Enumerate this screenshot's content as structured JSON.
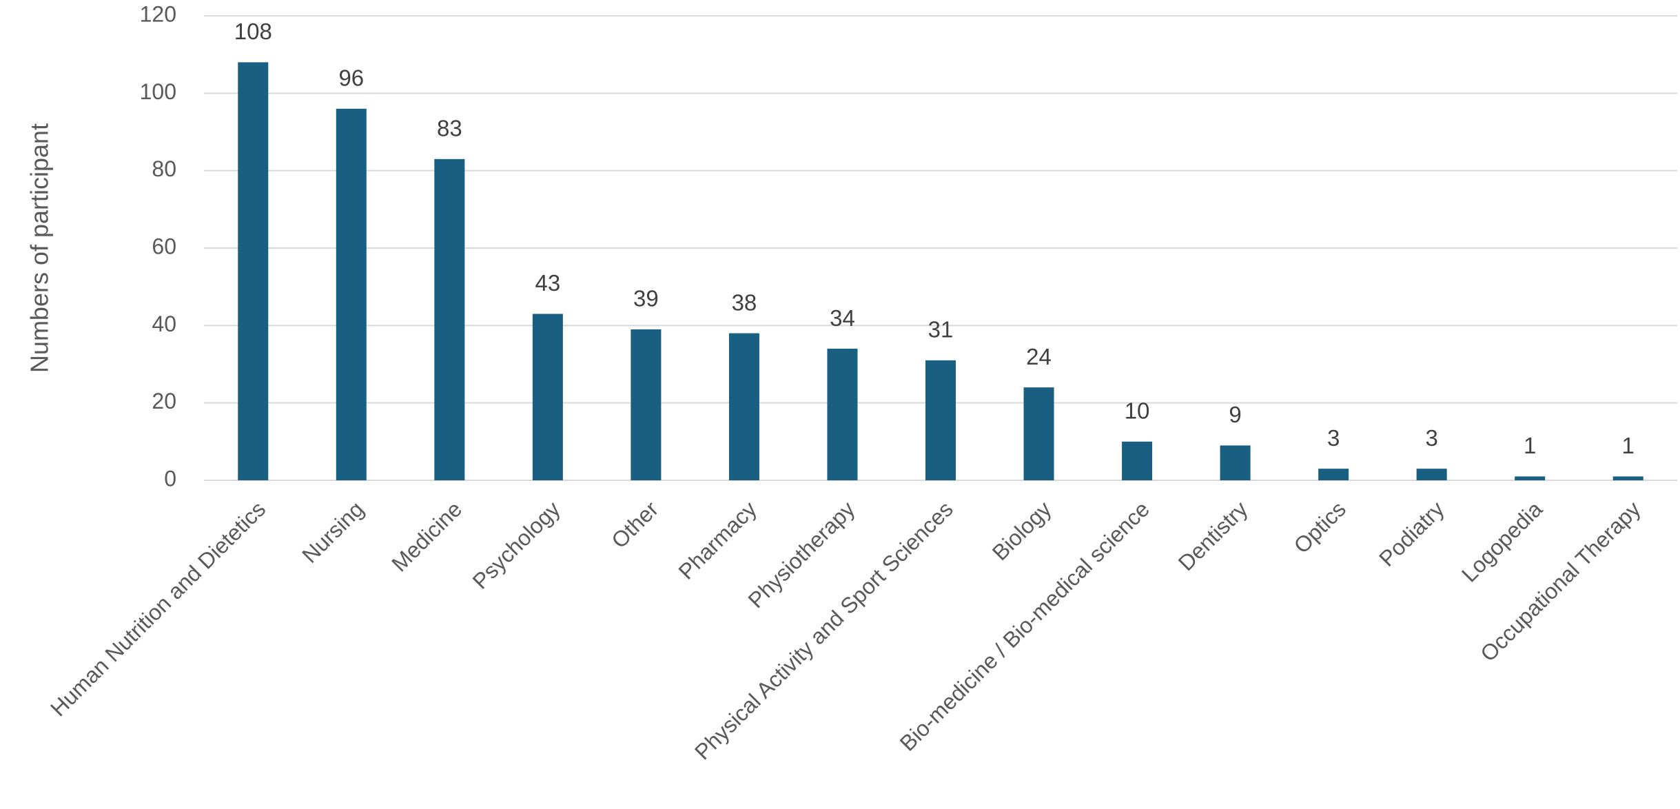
{
  "chart_data": {
    "type": "bar",
    "y_label": "Numbers of participant",
    "categories": [
      "Human Nutrition and Dietetics",
      "Nursing",
      "Medicine",
      "Psychology",
      "Other",
      "Pharmacy",
      "Physiotherapy",
      "Physical Activity and Sport Sciences",
      "Biology",
      "Bio-medicine / Bio-medical science",
      "Dentistry",
      "Optics",
      "Podiatry",
      "Logopedia",
      "Occupational Therapy"
    ],
    "values": [
      108,
      96,
      83,
      43,
      39,
      38,
      34,
      31,
      24,
      10,
      9,
      3,
      3,
      1,
      1
    ],
    "color": "#185f82",
    "ylim": [
      0,
      120
    ],
    "yticks": [
      0,
      20,
      40,
      60,
      80,
      100,
      120
    ],
    "grid": true
  }
}
